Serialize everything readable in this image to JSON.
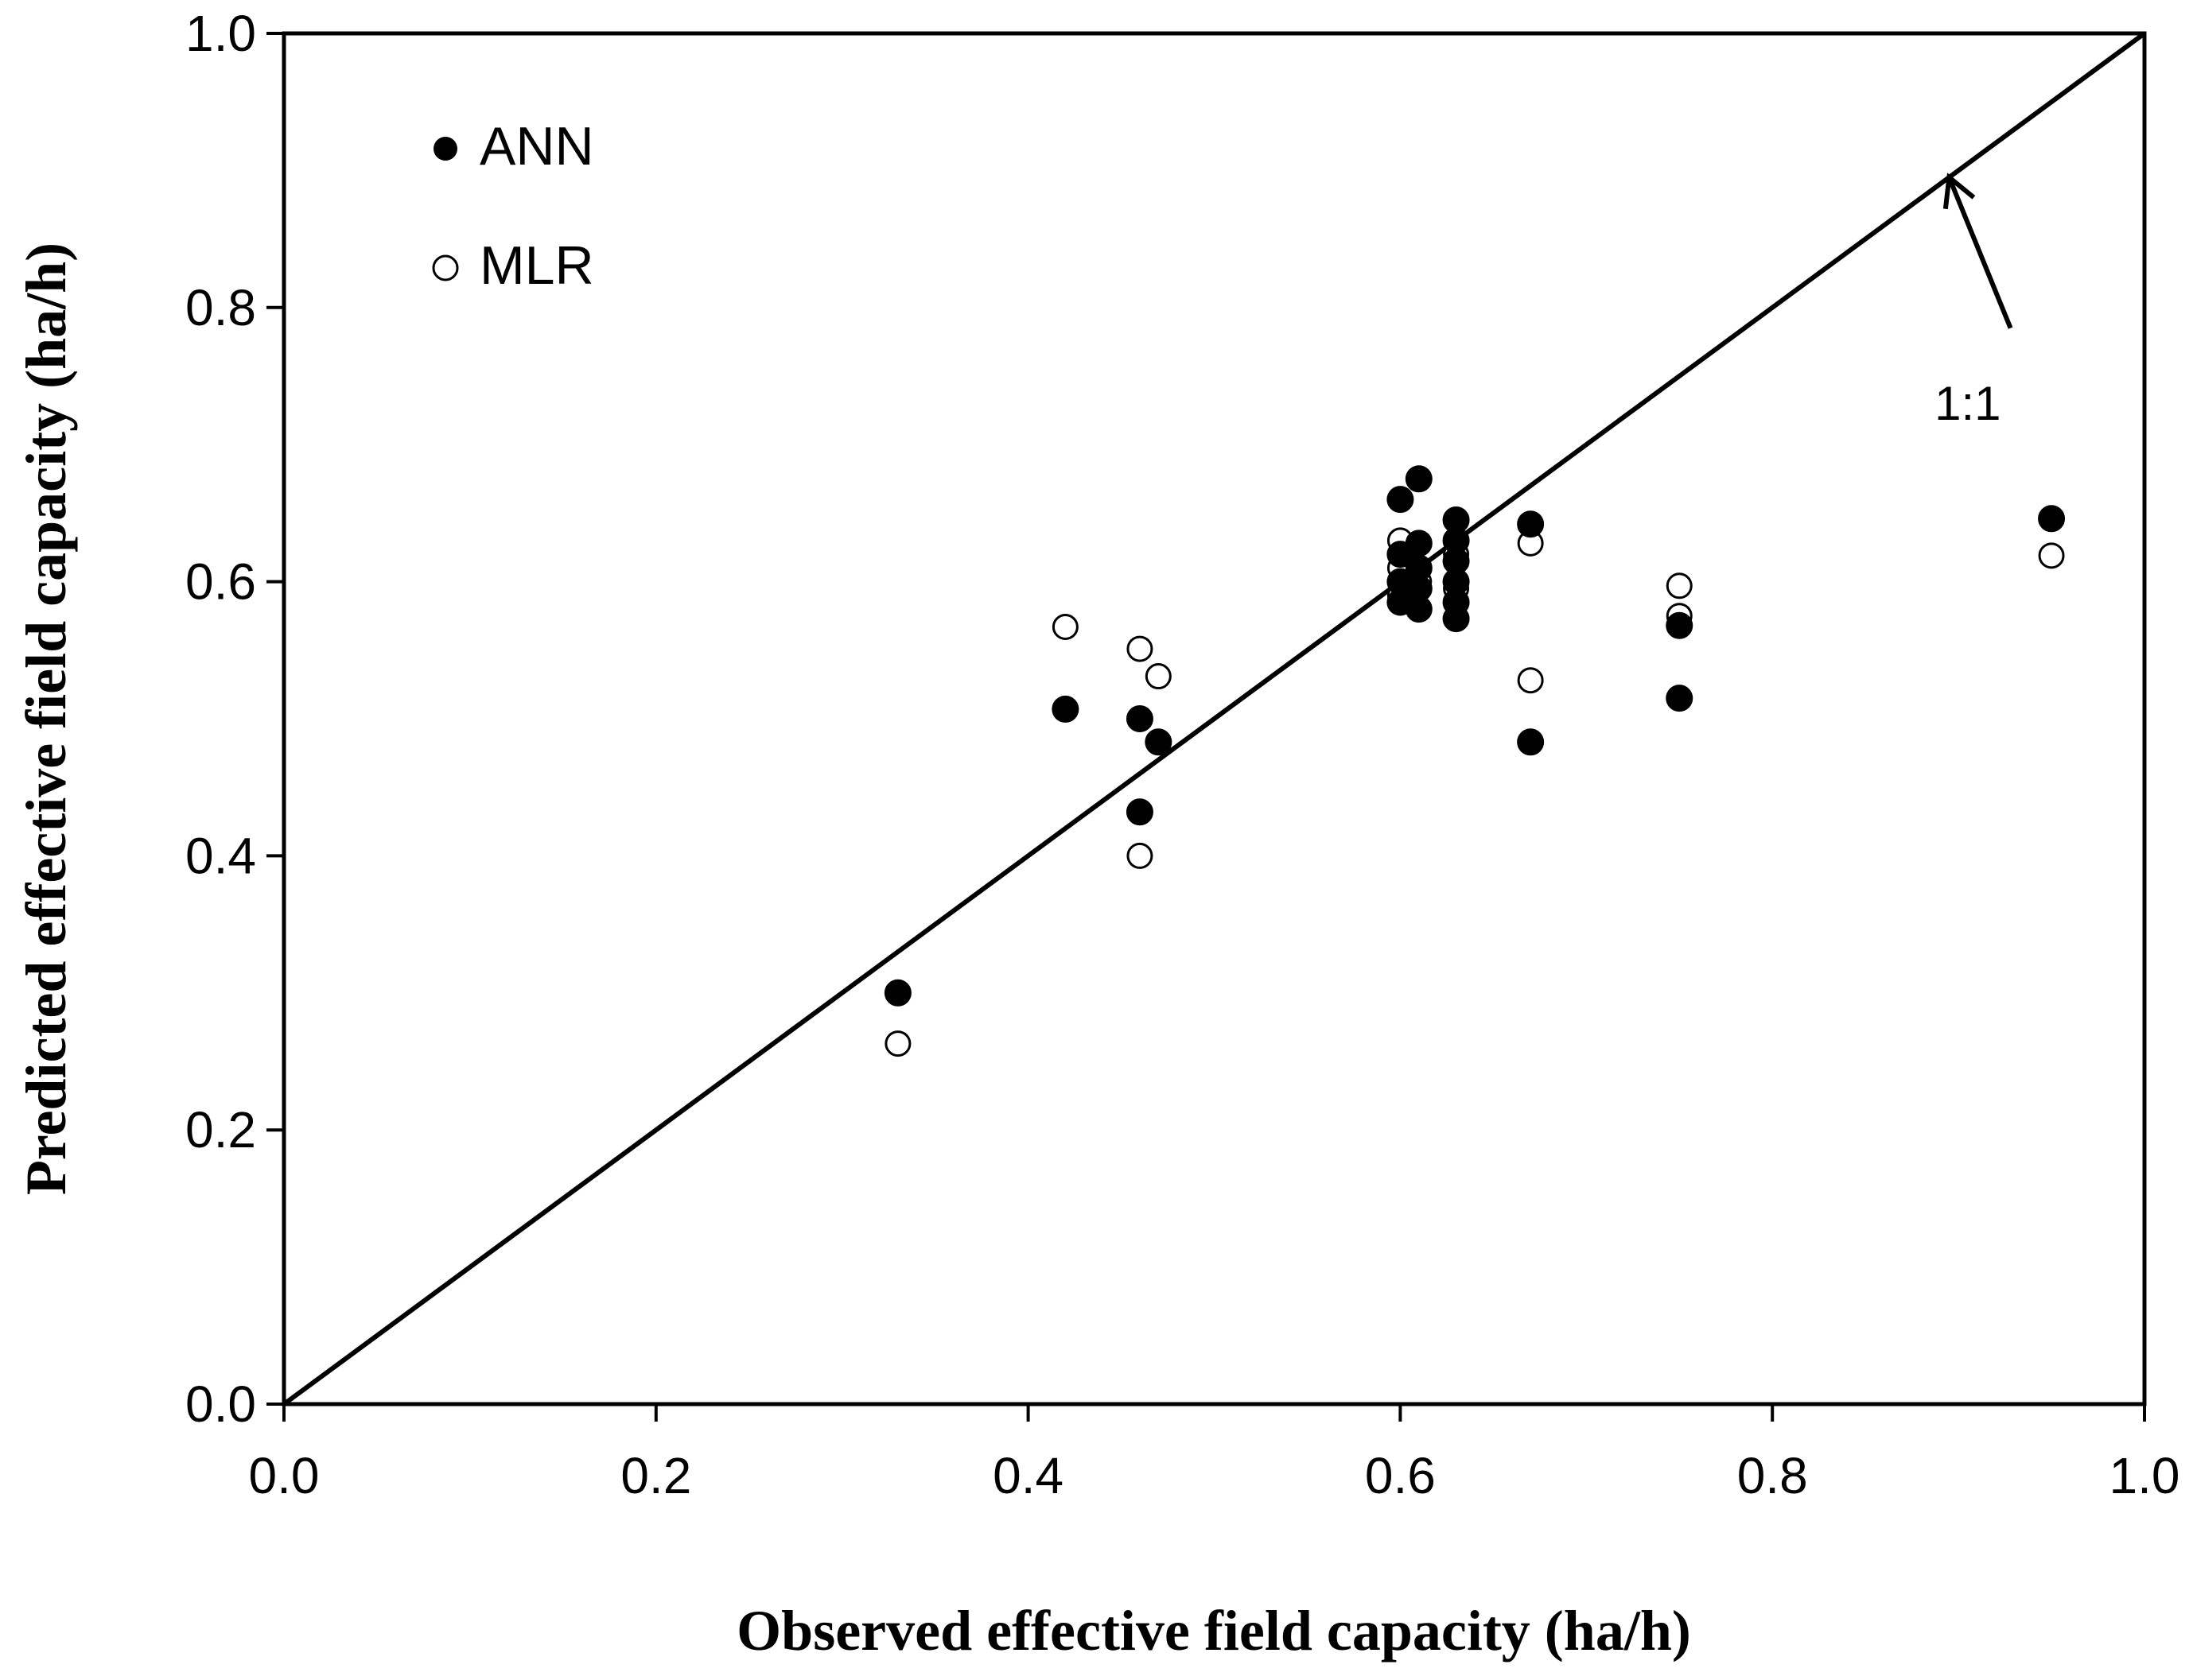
{
  "chart_data": {
    "type": "scatter",
    "title": "",
    "xlabel": "Observed effective field capacity (ha/h)",
    "ylabel": "Predicted effective field capacity (ha/h)",
    "xlim": [
      0.0,
      1.0
    ],
    "ylim": [
      0.0,
      1.0
    ],
    "x_ticks": [
      "0.0",
      "0.2",
      "0.4",
      "0.6",
      "0.8",
      "1.0"
    ],
    "y_ticks": [
      "0.0",
      "0.2",
      "0.4",
      "0.6",
      "0.8",
      "1.0"
    ],
    "grid": false,
    "legend_position": "top-left",
    "series": [
      {
        "name": "ANN",
        "marker": "filled-circle",
        "color": "#000000",
        "points": [
          [
            0.33,
            0.3
          ],
          [
            0.42,
            0.507
          ],
          [
            0.46,
            0.5
          ],
          [
            0.47,
            0.483
          ],
          [
            0.46,
            0.432
          ],
          [
            0.6,
            0.66
          ],
          [
            0.6,
            0.62
          ],
          [
            0.6,
            0.6
          ],
          [
            0.6,
            0.585
          ],
          [
            0.61,
            0.675
          ],
          [
            0.61,
            0.628
          ],
          [
            0.61,
            0.61
          ],
          [
            0.61,
            0.595
          ],
          [
            0.61,
            0.58
          ],
          [
            0.63,
            0.645
          ],
          [
            0.63,
            0.63
          ],
          [
            0.63,
            0.615
          ],
          [
            0.63,
            0.6
          ],
          [
            0.63,
            0.585
          ],
          [
            0.63,
            0.573
          ],
          [
            0.67,
            0.642
          ],
          [
            0.67,
            0.483
          ],
          [
            0.75,
            0.568
          ],
          [
            0.75,
            0.515
          ],
          [
            0.95,
            0.646
          ]
        ]
      },
      {
        "name": "MLR",
        "marker": "open-circle",
        "color": "#000000",
        "points": [
          [
            0.33,
            0.263
          ],
          [
            0.42,
            0.567
          ],
          [
            0.46,
            0.551
          ],
          [
            0.47,
            0.531
          ],
          [
            0.46,
            0.4
          ],
          [
            0.6,
            0.63
          ],
          [
            0.6,
            0.61
          ],
          [
            0.6,
            0.59
          ],
          [
            0.61,
            0.6
          ],
          [
            0.63,
            0.62
          ],
          [
            0.63,
            0.595
          ],
          [
            0.67,
            0.628
          ],
          [
            0.67,
            0.528
          ],
          [
            0.75,
            0.597
          ],
          [
            0.75,
            0.575
          ],
          [
            0.95,
            0.619
          ]
        ]
      }
    ],
    "reference_line": {
      "label": "1:1",
      "from": [
        0.0,
        0.0
      ],
      "to": [
        1.0,
        1.0
      ]
    },
    "annotations": [
      {
        "text": "1:1",
        "text_at": [
          0.905,
          0.718
        ],
        "arrow_from": [
          0.928,
          0.785
        ],
        "arrow_to": [
          0.895,
          0.895
        ]
      }
    ]
  }
}
